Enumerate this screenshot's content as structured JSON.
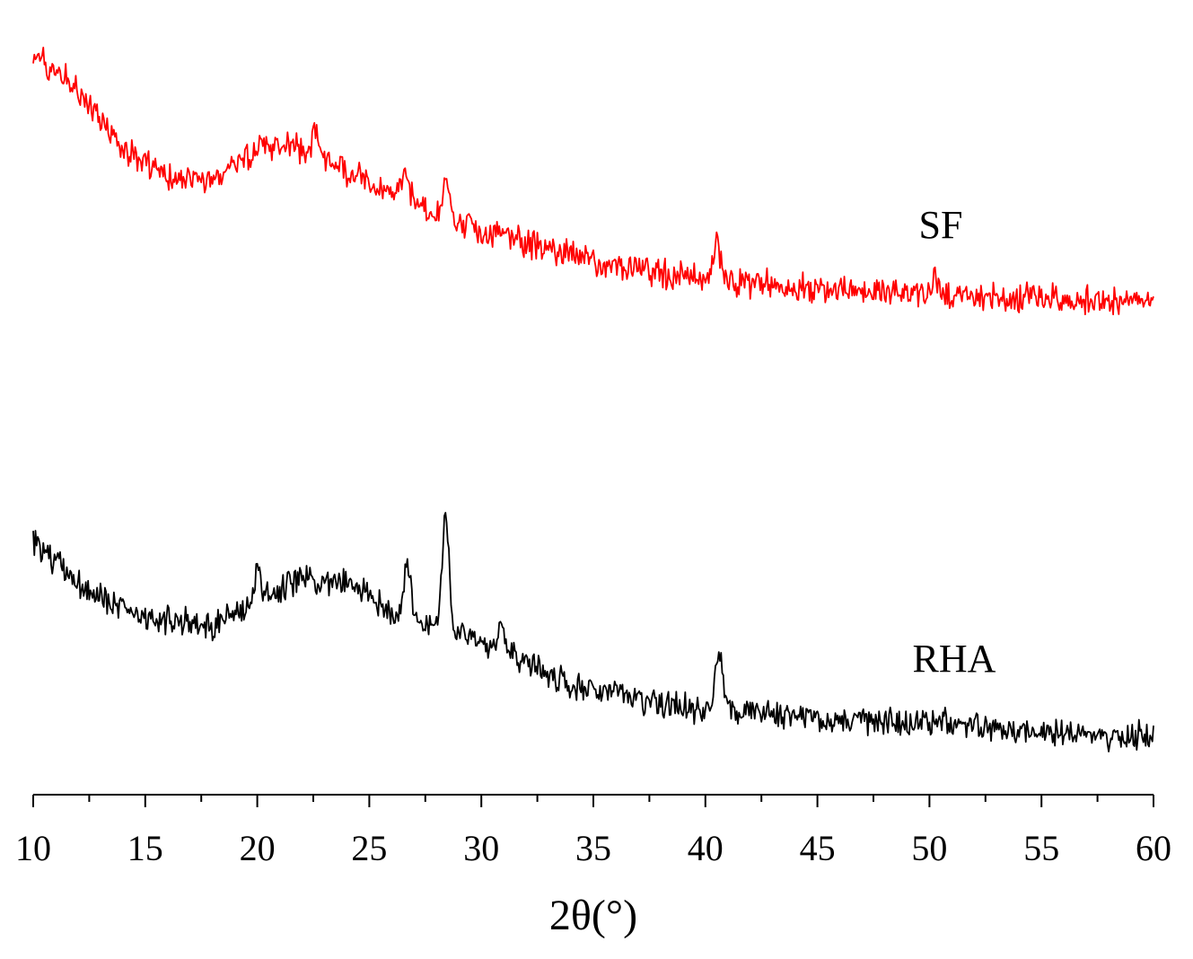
{
  "chart_data": {
    "type": "line",
    "title": "",
    "xlabel": "2θ(°)",
    "ylabel": "",
    "xlim": [
      10,
      60
    ],
    "x_ticks": [
      10,
      15,
      20,
      25,
      30,
      35,
      40,
      45,
      50,
      55,
      60
    ],
    "y_axis_shown": false,
    "grid": false,
    "legend": "none",
    "series": [
      {
        "name": "SF",
        "color": "#ff0000",
        "baseline": [
          [
            10,
            60
          ],
          [
            12,
            100
          ],
          [
            14,
            165
          ],
          [
            16,
            200
          ],
          [
            18,
            200
          ],
          [
            20,
            170
          ],
          [
            21,
            160
          ],
          [
            22,
            165
          ],
          [
            24,
            190
          ],
          [
            26,
            210
          ],
          [
            28,
            240
          ],
          [
            30,
            255
          ],
          [
            32,
            270
          ],
          [
            34,
            285
          ],
          [
            36,
            295
          ],
          [
            38,
            305
          ],
          [
            40,
            310
          ],
          [
            42,
            315
          ],
          [
            45,
            322
          ],
          [
            50,
            328
          ],
          [
            55,
            333
          ],
          [
            60,
            337
          ]
        ],
        "peaks": [
          [
            26.6,
            30
          ],
          [
            28.4,
            45
          ],
          [
            22.6,
            30
          ],
          [
            40.5,
            40
          ],
          [
            50.2,
            15
          ]
        ]
      },
      {
        "name": "RHA",
        "color": "#000000",
        "baseline": [
          [
            10,
            605
          ],
          [
            12,
            650
          ],
          [
            14,
            680
          ],
          [
            16,
            690
          ],
          [
            18,
            695
          ],
          [
            20,
            670
          ],
          [
            22,
            645
          ],
          [
            24,
            650
          ],
          [
            26,
            680
          ],
          [
            28,
            700
          ],
          [
            30,
            715
          ],
          [
            32,
            735
          ],
          [
            34,
            765
          ],
          [
            36,
            775
          ],
          [
            38,
            785
          ],
          [
            40,
            790
          ],
          [
            42,
            795
          ],
          [
            45,
            800
          ],
          [
            50,
            805
          ],
          [
            55,
            815
          ],
          [
            60,
            820
          ]
        ],
        "peaks": [
          [
            26.7,
            60
          ],
          [
            28.4,
            130
          ],
          [
            30.9,
            30
          ],
          [
            40.6,
            70
          ],
          [
            20.0,
            30
          ]
        ]
      }
    ]
  }
}
